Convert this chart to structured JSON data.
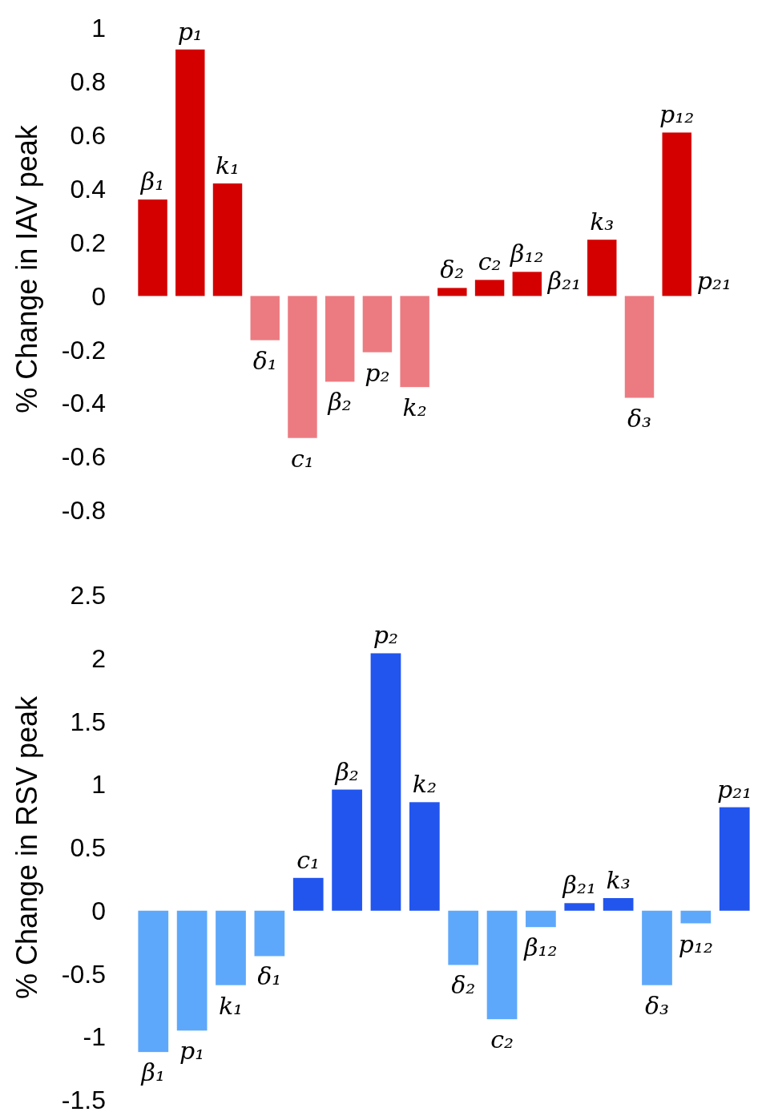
{
  "chart_data": [
    {
      "type": "bar",
      "ylabel": "% Change in IAV peak",
      "categories": [
        "β₁",
        "p₁",
        "k₁",
        "δ₁",
        "c₁",
        "β₂",
        "p₂",
        "k₂",
        "δ₂",
        "c₂",
        "β₁₂",
        "β₂₁",
        "k₃",
        "δ₃",
        "p₁₂",
        "p₂₁"
      ],
      "values": [
        0.36,
        0.92,
        0.42,
        -0.165,
        -0.53,
        -0.32,
        -0.21,
        -0.34,
        0.03,
        0.06,
        0.09,
        0,
        0.21,
        -0.38,
        0.61,
        0
      ],
      "colors": [
        "#d40000",
        "#d40000",
        "#d40000",
        "#ec7b81",
        "#ec7b81",
        "#ec7b81",
        "#ec7b81",
        "#ec7b81",
        "#d40000",
        "#d40000",
        "#d40000",
        "#d40000",
        "#d40000",
        "#ec7b81",
        "#d40000",
        "#d40000"
      ],
      "ylim": [
        -0.8,
        1
      ],
      "yticks": [
        -0.8,
        -0.6,
        -0.4,
        -0.2,
        0,
        0.2,
        0.4,
        0.6,
        0.8,
        1
      ]
    },
    {
      "type": "bar",
      "ylabel": "% Change in RSV peak",
      "categories": [
        "β₁",
        "p₁",
        "k₁",
        "δ₁",
        "c₁",
        "β₂",
        "p₂",
        "k₂",
        "δ₂",
        "c₂",
        "β₁₂",
        "β₂₁",
        "k₃",
        "δ₃",
        "p₁₂",
        "p₂₁"
      ],
      "values": [
        -1.12,
        -0.95,
        -0.59,
        -0.36,
        0.26,
        0.96,
        2.04,
        0.86,
        -0.43,
        -0.86,
        -0.13,
        0.06,
        0.1,
        -0.59,
        -0.1,
        0.82
      ],
      "colors": [
        "#5ea8fb",
        "#5ea8fb",
        "#5ea8fb",
        "#5ea8fb",
        "#2255ee",
        "#2255ee",
        "#2255ee",
        "#2255ee",
        "#5ea8fb",
        "#5ea8fb",
        "#5ea8fb",
        "#2255ee",
        "#2255ee",
        "#5ea8fb",
        "#5ea8fb",
        "#2255ee"
      ],
      "ylim": [
        -1.5,
        2.5
      ],
      "yticks": [
        -1.5,
        -1,
        -0.5,
        0,
        0.5,
        1,
        1.5,
        2,
        2.5
      ]
    }
  ]
}
